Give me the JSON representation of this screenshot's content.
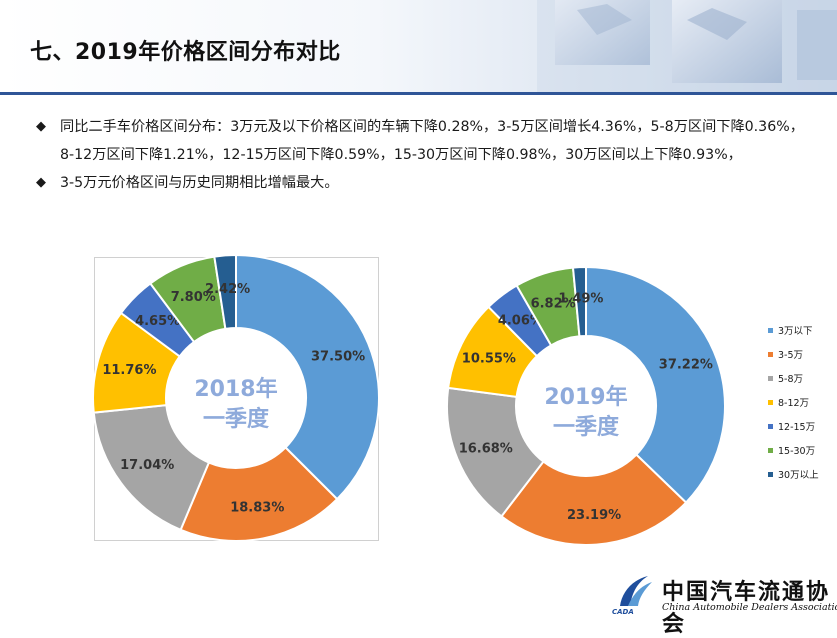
{
  "page": {
    "title": "七、2019年价格区间分布对比",
    "bullets": [
      "同比二手车价格区间分布：3万元及以下价格区间的车辆下降0.28%，3-5万区间增长4.36%，5-8万区间下降0.36%，8-12万区间下降1.21%，12-15万区间下降0.59%，15-30万区间下降0.98%，30万区间以上下降0.93%，",
      "3-5万元价格区间与历史同期相比增幅最大。"
    ],
    "bullet_marker": "◆"
  },
  "logo": {
    "name_cn": "中国汽车流通协会",
    "name_en": "China Automobile Dealers Association",
    "mark_text": "CADA"
  },
  "colors": {
    "3万以下": "#5b9bd5",
    "3-5万": "#ed7d31",
    "5-8万": "#a5a5a5",
    "8-12万": "#ffc000",
    "12-15万": "#4472c4",
    "15-30万": "#70ad47",
    "30万以上": "#255e91",
    "center_text": "#8eaadb"
  },
  "chart_data": [
    {
      "type": "pie",
      "center_label": [
        "2018年",
        "一季度"
      ],
      "categories": [
        "3万以下",
        "3-5万",
        "5-8万",
        "8-12万",
        "12-15万",
        "15-30万",
        "30万以上"
      ],
      "values": [
        37.5,
        18.83,
        17.04,
        11.76,
        4.65,
        7.8,
        2.42
      ],
      "data_labels": [
        "37.50%",
        "18.83%",
        "17.04%",
        "11.76%",
        "4.65%",
        "7.80%",
        "2.42%"
      ]
    },
    {
      "type": "pie",
      "center_label": [
        "2019年",
        "一季度"
      ],
      "categories": [
        "3万以下",
        "3-5万",
        "5-8万",
        "8-12万",
        "12-15万",
        "15-30万",
        "30万以上"
      ],
      "values": [
        37.22,
        23.19,
        16.68,
        10.55,
        4.06,
        6.82,
        1.49
      ],
      "data_labels": [
        "37.22%",
        "23.19%",
        "16.68%",
        "10.55%",
        "4.06%",
        "6.82%",
        "1.49%"
      ],
      "legend": {
        "placement": "right",
        "entries": [
          "3万以下",
          "3-5万",
          "5-8万",
          "8-12万",
          "12-15万",
          "15-30万",
          "30万以上"
        ]
      }
    }
  ]
}
